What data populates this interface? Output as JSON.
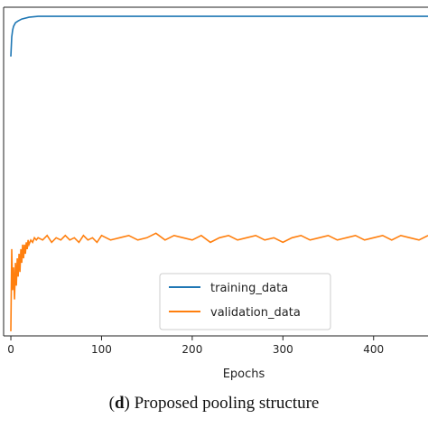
{
  "caption": {
    "letter": "d",
    "text": "Proposed pooling structure"
  },
  "chart_data": {
    "type": "line",
    "xlabel": "Epochs",
    "ylabel": "",
    "xlim": [
      -8,
      460
    ],
    "ylim": [
      0.3,
      1.02
    ],
    "xticks": [
      0,
      100,
      200,
      300,
      400
    ],
    "legend_position": "lower-right",
    "series": [
      {
        "name": "training_data",
        "color": "#1f77b4",
        "x": [
          0,
          1,
          2,
          3,
          5,
          8,
          12,
          20,
          30,
          50,
          100,
          200,
          300,
          400,
          460
        ],
        "y": [
          0.912,
          0.955,
          0.97,
          0.978,
          0.986,
          0.99,
          0.994,
          0.998,
          1.0,
          1.0,
          1.0,
          1.0,
          1.0,
          1.0,
          1.0
        ]
      },
      {
        "name": "validation_data",
        "color": "#ff7f0e",
        "x": [
          0,
          1,
          2,
          3,
          4,
          5,
          6,
          7,
          8,
          9,
          10,
          11,
          12,
          13,
          14,
          15,
          16,
          17,
          18,
          19,
          20,
          22,
          24,
          26,
          28,
          30,
          35,
          40,
          45,
          50,
          55,
          60,
          65,
          70,
          75,
          80,
          85,
          90,
          95,
          100,
          110,
          120,
          130,
          140,
          150,
          160,
          170,
          180,
          190,
          200,
          210,
          220,
          230,
          240,
          250,
          260,
          270,
          280,
          290,
          300,
          310,
          320,
          330,
          340,
          350,
          360,
          370,
          380,
          390,
          400,
          410,
          420,
          430,
          440,
          450,
          460
        ],
        "y": [
          0.31,
          0.49,
          0.4,
          0.45,
          0.38,
          0.46,
          0.41,
          0.47,
          0.43,
          0.48,
          0.44,
          0.49,
          0.46,
          0.5,
          0.47,
          0.5,
          0.48,
          0.505,
          0.49,
          0.51,
          0.5,
          0.51,
          0.505,
          0.515,
          0.51,
          0.515,
          0.51,
          0.52,
          0.505,
          0.515,
          0.51,
          0.52,
          0.51,
          0.515,
          0.505,
          0.52,
          0.51,
          0.515,
          0.505,
          0.52,
          0.51,
          0.515,
          0.52,
          0.51,
          0.515,
          0.525,
          0.51,
          0.52,
          0.515,
          0.51,
          0.52,
          0.505,
          0.515,
          0.52,
          0.51,
          0.515,
          0.52,
          0.51,
          0.515,
          0.505,
          0.515,
          0.52,
          0.51,
          0.515,
          0.52,
          0.51,
          0.515,
          0.52,
          0.51,
          0.515,
          0.52,
          0.51,
          0.52,
          0.515,
          0.51,
          0.52
        ]
      }
    ]
  }
}
